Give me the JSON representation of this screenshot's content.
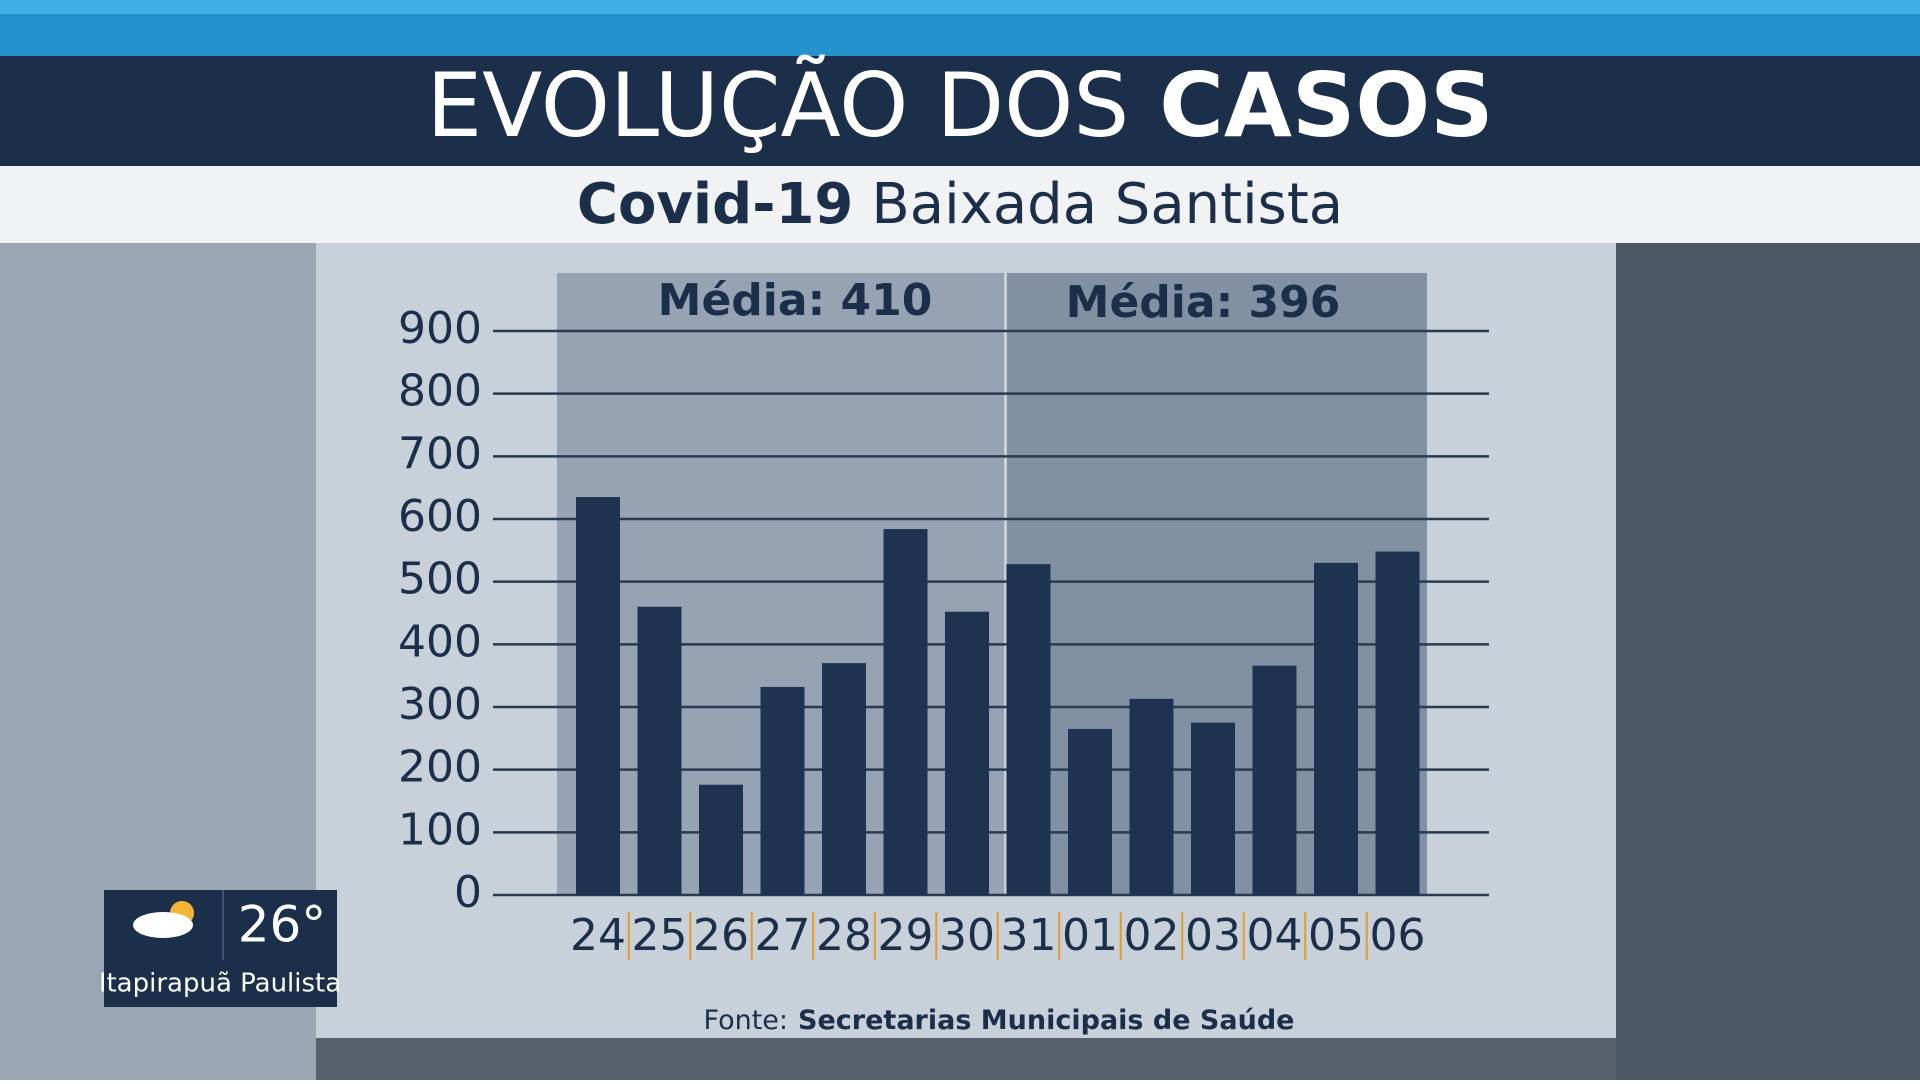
{
  "chart_data": {
    "type": "bar",
    "title": "EVOLUÇÃO DOS",
    "title_emphasis": "CASOS",
    "subtitle_emphasis": "Covid-19",
    "subtitle": "Baixada Santista",
    "annotations": [
      "Média: 410",
      "Média: 396"
    ],
    "source_label": "Fonte:",
    "source": "Secretarias Municipais de Saúde",
    "categories": [
      "24",
      "25",
      "26",
      "27",
      "28",
      "29",
      "30",
      "31",
      "01",
      "02",
      "03",
      "04",
      "05",
      "06"
    ],
    "values": [
      635,
      460,
      176,
      332,
      370,
      584,
      452,
      528,
      265,
      313,
      275,
      366,
      530,
      548
    ],
    "color": "#1e3350",
    "ylim": [
      0,
      900
    ],
    "yticks": [
      0,
      100,
      200,
      300,
      400,
      500,
      600,
      700,
      800,
      900
    ],
    "grid": true
  },
  "overlay": {
    "temperature": "26°",
    "location": "Itapirapuã Paulista"
  }
}
